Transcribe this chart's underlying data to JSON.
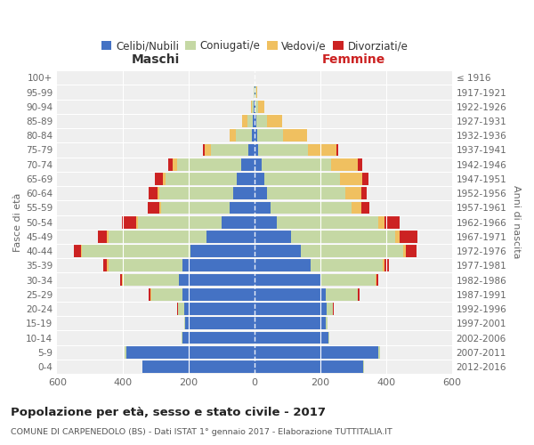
{
  "age_groups": [
    "0-4",
    "5-9",
    "10-14",
    "15-19",
    "20-24",
    "25-29",
    "30-34",
    "35-39",
    "40-44",
    "45-49",
    "50-54",
    "55-59",
    "60-64",
    "65-69",
    "70-74",
    "75-79",
    "80-84",
    "85-89",
    "90-94",
    "95-99",
    "100+"
  ],
  "birth_years": [
    "2012-2016",
    "2007-2011",
    "2002-2006",
    "1997-2001",
    "1992-1996",
    "1987-1991",
    "1982-1986",
    "1977-1981",
    "1972-1976",
    "1967-1971",
    "1962-1966",
    "1957-1961",
    "1952-1956",
    "1947-1951",
    "1942-1946",
    "1937-1941",
    "1932-1936",
    "1927-1931",
    "1922-1926",
    "1917-1921",
    "≤ 1916"
  ],
  "colors": {
    "celibi": "#4472C4",
    "coniugati": "#C5D8A4",
    "vedovi": "#F0C060",
    "divorziati": "#CC2222"
  },
  "males": {
    "celibi": [
      340,
      390,
      220,
      210,
      215,
      220,
      230,
      220,
      195,
      145,
      100,
      75,
      65,
      55,
      40,
      18,
      8,
      5,
      2,
      1,
      1
    ],
    "coniugati": [
      2,
      5,
      2,
      5,
      18,
      95,
      170,
      225,
      330,
      300,
      255,
      210,
      225,
      215,
      195,
      115,
      50,
      18,
      5,
      2,
      0
    ],
    "vedovi": [
      0,
      0,
      0,
      0,
      1,
      2,
      2,
      4,
      4,
      4,
      4,
      4,
      4,
      10,
      14,
      18,
      18,
      14,
      4,
      1,
      0
    ],
    "divorziati": [
      0,
      0,
      0,
      0,
      2,
      5,
      7,
      12,
      20,
      28,
      44,
      35,
      28,
      24,
      14,
      5,
      0,
      0,
      0,
      0,
      0
    ]
  },
  "females": {
    "nubili": [
      330,
      375,
      225,
      215,
      220,
      215,
      200,
      170,
      140,
      110,
      68,
      48,
      38,
      30,
      22,
      12,
      7,
      5,
      3,
      2,
      0
    ],
    "coniugate": [
      2,
      5,
      3,
      7,
      18,
      98,
      168,
      220,
      312,
      318,
      308,
      248,
      238,
      230,
      210,
      150,
      80,
      32,
      8,
      2,
      0
    ],
    "vedove": [
      0,
      0,
      0,
      0,
      1,
      2,
      3,
      5,
      7,
      14,
      18,
      28,
      48,
      68,
      82,
      88,
      72,
      48,
      18,
      5,
      0
    ],
    "divorziate": [
      0,
      0,
      0,
      0,
      1,
      3,
      5,
      14,
      33,
      52,
      48,
      24,
      18,
      18,
      14,
      5,
      0,
      0,
      0,
      0,
      0
    ]
  },
  "title": "Popolazione per età, sesso e stato civile - 2017",
  "subtitle": "COMUNE DI CARPENEDOLO (BS) - Dati ISTAT 1° gennaio 2017 - Elaborazione TUTTITALIA.IT",
  "xlabel_left": "Maschi",
  "xlabel_right": "Femmine",
  "ylabel_left": "Fasce di età",
  "ylabel_right": "Anni di nascita",
  "xlim": 600,
  "legend_labels": [
    "Celibi/Nubili",
    "Coniugati/e",
    "Vedovi/e",
    "Divorziati/e"
  ],
  "bg_color": "#ffffff",
  "plot_bg": "#efefef",
  "bar_height": 0.85
}
